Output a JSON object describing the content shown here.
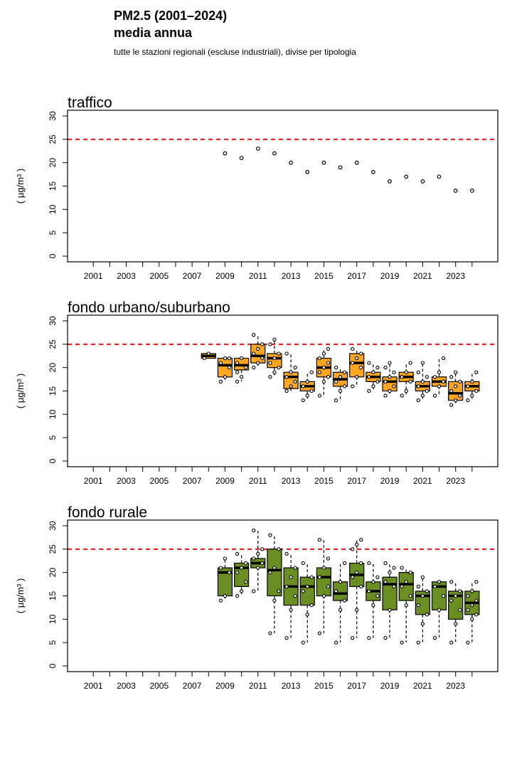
{
  "header": {
    "title_line1": "PM2.5 (2001–2024)",
    "title_line2": "media annua",
    "subtitle": "tutte le stazioni regionali (escluse industriali), divise per tipologia"
  },
  "colors": {
    "reference_line": "#ee1111",
    "urbano_fill": "#ffa51f",
    "rurale_fill": "#6b8e23",
    "axis": "#000000"
  },
  "chart_data": [
    {
      "type": "scatter",
      "panel_title": "traffico",
      "ylabel": "( µg/m³ )",
      "ylim": [
        0,
        30
      ],
      "yticks": [
        0,
        5,
        10,
        15,
        20,
        25,
        30
      ],
      "xlim": [
        2000,
        2025
      ],
      "xtick_labels": [
        2001,
        2003,
        2005,
        2007,
        2009,
        2011,
        2013,
        2015,
        2017,
        2019,
        2021,
        2023
      ],
      "reference_line": 25,
      "points": [
        [
          2009,
          22
        ],
        [
          2010,
          21
        ],
        [
          2011,
          23
        ],
        [
          2012,
          22
        ],
        [
          2013,
          20
        ],
        [
          2014,
          18
        ],
        [
          2015,
          20
        ],
        [
          2016,
          19
        ],
        [
          2017,
          20
        ],
        [
          2018,
          18
        ],
        [
          2019,
          16
        ],
        [
          2020,
          17
        ],
        [
          2021,
          16
        ],
        [
          2022,
          17
        ],
        [
          2023,
          14
        ],
        [
          2024,
          14
        ]
      ]
    },
    {
      "type": "boxplot",
      "panel_title": "fondo urbano/suburbano",
      "ylabel": "( µg/m³ )",
      "ylim": [
        0,
        30
      ],
      "yticks": [
        0,
        5,
        10,
        15,
        20,
        25,
        30
      ],
      "xlim": [
        2000,
        2025
      ],
      "xtick_labels": [
        2001,
        2003,
        2005,
        2007,
        2009,
        2011,
        2013,
        2015,
        2017,
        2019,
        2021,
        2023
      ],
      "reference_line": 25,
      "boxes": [
        {
          "year": 2008,
          "min": 22,
          "q1": 22,
          "median": 22.5,
          "q3": 23,
          "max": 23,
          "points": [
            22,
            23
          ]
        },
        {
          "year": 2009,
          "min": 17,
          "q1": 18,
          "median": 20.5,
          "q3": 22,
          "max": 22,
          "points": [
            17,
            18,
            20,
            21,
            22,
            22
          ]
        },
        {
          "year": 2010,
          "min": 17,
          "q1": 19.5,
          "median": 20.5,
          "q3": 22,
          "max": 22,
          "points": [
            17,
            18,
            20,
            21,
            22,
            20,
            19
          ]
        },
        {
          "year": 2011,
          "min": 20,
          "q1": 21,
          "median": 22.5,
          "q3": 25,
          "max": 27,
          "points": [
            20,
            21,
            22,
            23,
            24,
            25,
            27
          ]
        },
        {
          "year": 2012,
          "min": 18,
          "q1": 20,
          "median": 22,
          "q3": 23,
          "max": 26,
          "points": [
            18,
            19,
            20,
            21,
            22,
            23,
            25,
            26
          ]
        },
        {
          "year": 2013,
          "min": 15,
          "q1": 15.5,
          "median": 18,
          "q3": 19,
          "max": 23,
          "points": [
            15,
            16,
            17,
            18,
            19,
            20,
            23
          ]
        },
        {
          "year": 2014,
          "min": 13,
          "q1": 15,
          "median": 16,
          "q3": 17,
          "max": 19,
          "points": [
            13,
            14,
            15,
            16,
            17,
            19
          ]
        },
        {
          "year": 2015,
          "min": 14,
          "q1": 18,
          "median": 20,
          "q3": 22,
          "max": 24,
          "points": [
            14,
            17,
            18,
            19,
            20,
            21,
            22,
            23,
            24
          ]
        },
        {
          "year": 2016,
          "min": 13,
          "q1": 16,
          "median": 17.5,
          "q3": 19,
          "max": 20,
          "points": [
            13,
            15,
            16,
            17,
            18,
            19,
            20
          ]
        },
        {
          "year": 2017,
          "min": 16,
          "q1": 18,
          "median": 21,
          "q3": 23,
          "max": 24,
          "points": [
            16,
            18,
            20,
            21,
            22,
            23,
            24
          ]
        },
        {
          "year": 2018,
          "min": 15,
          "q1": 17,
          "median": 18,
          "q3": 19,
          "max": 21,
          "points": [
            15,
            16,
            17,
            18,
            19,
            20,
            21
          ]
        },
        {
          "year": 2019,
          "min": 14,
          "q1": 15,
          "median": 17,
          "q3": 18,
          "max": 21,
          "points": [
            14,
            15,
            16,
            17,
            18,
            19,
            20,
            21
          ]
        },
        {
          "year": 2020,
          "min": 14,
          "q1": 17,
          "median": 18,
          "q3": 19,
          "max": 21,
          "points": [
            14,
            15,
            17,
            18,
            19,
            21
          ]
        },
        {
          "year": 2021,
          "min": 13,
          "q1": 15,
          "median": 16,
          "q3": 17,
          "max": 21,
          "points": [
            13,
            14,
            15,
            16,
            17,
            18,
            19,
            21
          ]
        },
        {
          "year": 2022,
          "min": 14,
          "q1": 16,
          "median": 17,
          "q3": 18,
          "max": 22,
          "points": [
            14,
            16,
            17,
            18,
            19,
            22
          ]
        },
        {
          "year": 2023,
          "min": 12,
          "q1": 13,
          "median": 14.5,
          "q3": 17,
          "max": 19,
          "points": [
            12,
            13,
            14,
            15,
            16,
            17,
            18,
            19
          ]
        },
        {
          "year": 2024,
          "min": 13,
          "q1": 15,
          "median": 16,
          "q3": 17,
          "max": 19,
          "points": [
            13,
            14,
            15,
            16,
            17,
            19
          ]
        }
      ]
    },
    {
      "type": "boxplot",
      "panel_title": "fondo rurale",
      "ylabel": "( µg/m³ )",
      "ylim": [
        0,
        30
      ],
      "yticks": [
        0,
        5,
        10,
        15,
        20,
        25,
        30
      ],
      "xlim": [
        2000,
        2025
      ],
      "xtick_labels": [
        2001,
        2003,
        2005,
        2007,
        2009,
        2011,
        2013,
        2015,
        2017,
        2019,
        2021,
        2023
      ],
      "reference_line": 25,
      "boxes": [
        {
          "year": 2009,
          "min": 14,
          "q1": 15,
          "median": 20,
          "q3": 21,
          "max": 23,
          "points": [
            14,
            15,
            20,
            21,
            23
          ]
        },
        {
          "year": 2010,
          "min": 15,
          "q1": 17,
          "median": 21,
          "q3": 22,
          "max": 24,
          "points": [
            15,
            16,
            18,
            20,
            21,
            22,
            24
          ]
        },
        {
          "year": 2011,
          "min": 16,
          "q1": 21,
          "median": 22,
          "q3": 23,
          "max": 29,
          "points": [
            16,
            21,
            22,
            23,
            24,
            25,
            29
          ]
        },
        {
          "year": 2012,
          "min": 7,
          "q1": 15,
          "median": 20.5,
          "q3": 25,
          "max": 28,
          "points": [
            7,
            14,
            16,
            20,
            21,
            25,
            28
          ]
        },
        {
          "year": 2013,
          "min": 6,
          "q1": 13,
          "median": 17,
          "q3": 21,
          "max": 24,
          "points": [
            6,
            12,
            15,
            17,
            19,
            21,
            24
          ]
        },
        {
          "year": 2014,
          "min": 5,
          "q1": 13,
          "median": 17,
          "q3": 19,
          "max": 22,
          "points": [
            5,
            11,
            13,
            16,
            17,
            19,
            22
          ]
        },
        {
          "year": 2015,
          "min": 7,
          "q1": 15,
          "median": 19,
          "q3": 21,
          "max": 27,
          "points": [
            7,
            15,
            17,
            19,
            21,
            23,
            27
          ]
        },
        {
          "year": 2016,
          "min": 5,
          "q1": 14,
          "median": 15.5,
          "q3": 18,
          "max": 22,
          "points": [
            5,
            12,
            14,
            16,
            18,
            22
          ]
        },
        {
          "year": 2017,
          "min": 6,
          "q1": 17,
          "median": 19.5,
          "q3": 22,
          "max": 27,
          "points": [
            6,
            12,
            17,
            19,
            20,
            22,
            25,
            26,
            27
          ]
        },
        {
          "year": 2018,
          "min": 6,
          "q1": 14,
          "median": 16,
          "q3": 18,
          "max": 22,
          "points": [
            6,
            13,
            15,
            16,
            18,
            19,
            22
          ]
        },
        {
          "year": 2019,
          "min": 6,
          "q1": 12,
          "median": 17.5,
          "q3": 19,
          "max": 22,
          "points": [
            6,
            12,
            17,
            18,
            20,
            21,
            22
          ]
        },
        {
          "year": 2020,
          "min": 5,
          "q1": 14,
          "median": 17.5,
          "q3": 20,
          "max": 21,
          "points": [
            5,
            13,
            15,
            17,
            18,
            20,
            21
          ]
        },
        {
          "year": 2021,
          "min": 5,
          "q1": 11,
          "median": 15,
          "q3": 16,
          "max": 19,
          "points": [
            5,
            9,
            11,
            13,
            15,
            16,
            17,
            19
          ]
        },
        {
          "year": 2022,
          "min": 6,
          "q1": 12,
          "median": 17,
          "q3": 18,
          "max": 18,
          "points": [
            6,
            12,
            15,
            17,
            18
          ]
        },
        {
          "year": 2023,
          "min": 5,
          "q1": 10,
          "median": 15,
          "q3": 16,
          "max": 18,
          "points": [
            5,
            9,
            12,
            14,
            15,
            16,
            18
          ]
        },
        {
          "year": 2024,
          "min": 5,
          "q1": 11,
          "median": 13.5,
          "q3": 16,
          "max": 18,
          "points": [
            5,
            10,
            11,
            12,
            13,
            14,
            15,
            16,
            18
          ]
        }
      ]
    }
  ]
}
